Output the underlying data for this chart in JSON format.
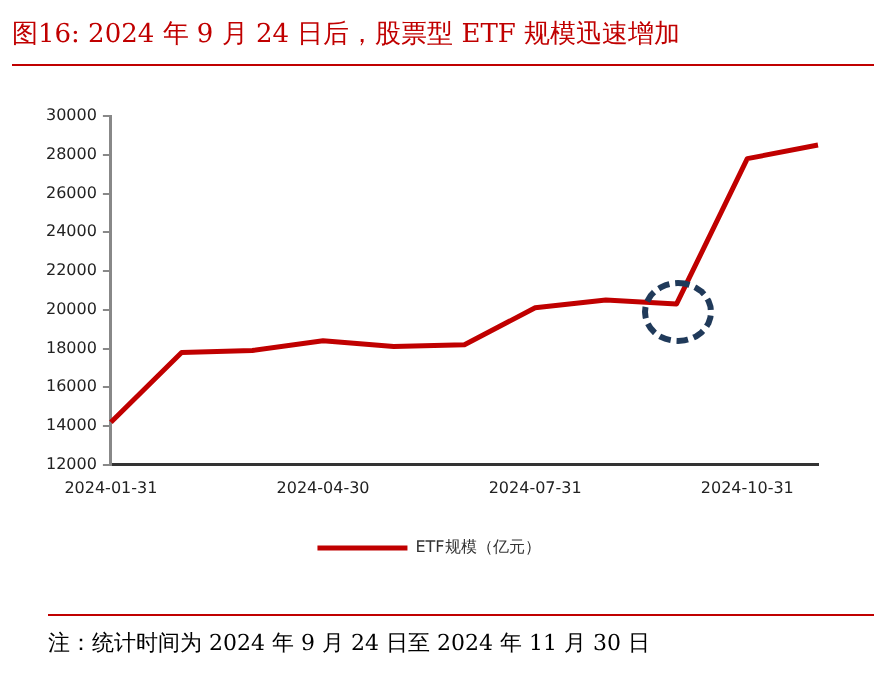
{
  "chart_data": {
    "type": "line",
    "title": "图16:  2024 年 9 月 24 日后，股票型 ETF 规模迅速增加",
    "categories": [
      "2024-01-31",
      null,
      null,
      "2024-04-30",
      null,
      null,
      "2024-07-31",
      null,
      null,
      "2024-10-31",
      null
    ],
    "series": [
      {
        "name": "ETF规模（亿元）",
        "color": "#c00000",
        "values": [
          14200,
          17800,
          17900,
          18400,
          18100,
          18200,
          20100,
          20500,
          20300,
          27800,
          28500
        ]
      }
    ],
    "ylim": [
      12000,
      30000
    ],
    "yticks": [
      12000,
      14000,
      16000,
      18000,
      20000,
      22000,
      24000,
      26000,
      28000,
      30000
    ],
    "grid": false,
    "legend": "bottom",
    "marker": "none",
    "line_style": "solid",
    "annotations": [
      "注：统计时间为 2024 年 9 月 24 日至 2024 年 11 月 30 日"
    ]
  }
}
